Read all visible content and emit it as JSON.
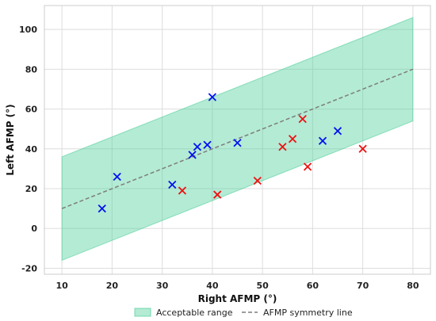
{
  "chart_data": {
    "type": "scatter",
    "xlabel": "Right AFMP (°)",
    "ylabel": "Left AFMP (°)",
    "xlim": [
      6.5,
      83.5
    ],
    "ylim": [
      -23,
      112
    ],
    "x_ticks": [
      10,
      20,
      30,
      40,
      50,
      60,
      70,
      80
    ],
    "y_ticks": [
      -20,
      0,
      20,
      40,
      60,
      80,
      100
    ],
    "grid": true,
    "legend_position": "bottom-center",
    "acceptable_range": {
      "name": "Acceptable range",
      "x": [
        10,
        80
      ],
      "lower": [
        -16,
        54
      ],
      "upper": [
        36,
        106
      ],
      "color": "#4ccf9a"
    },
    "symmetry_line": {
      "name": "AFMP symmetry line",
      "x": [
        10,
        80
      ],
      "y": [
        10,
        80
      ],
      "color": "#7d7d7d"
    },
    "series": [
      {
        "color": "#0011ee",
        "marker": "x",
        "points": [
          [
            18,
            10
          ],
          [
            21,
            26
          ],
          [
            32,
            22
          ],
          [
            36,
            37
          ],
          [
            37,
            41
          ],
          [
            39,
            42
          ],
          [
            40,
            66
          ],
          [
            45,
            43
          ],
          [
            62,
            44
          ],
          [
            65,
            49
          ]
        ]
      },
      {
        "color": "#ee1111",
        "marker": "x",
        "points": [
          [
            34,
            19
          ],
          [
            41,
            17
          ],
          [
            49,
            24
          ],
          [
            54,
            41
          ],
          [
            56,
            45
          ],
          [
            58,
            55
          ],
          [
            59,
            31
          ],
          [
            70,
            40
          ]
        ]
      }
    ]
  }
}
